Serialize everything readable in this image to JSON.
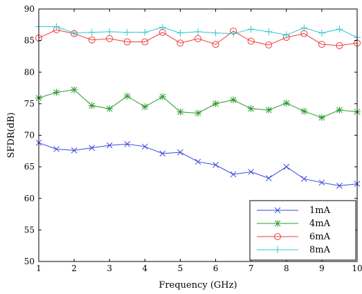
{
  "chart_data": {
    "type": "line",
    "xlabel": "Frequency (GHz)",
    "ylabel": "SFDR(dB)",
    "xlim": [
      1,
      10
    ],
    "ylim": [
      50,
      90
    ],
    "xticks": [
      "1",
      "2",
      "3",
      "4",
      "5",
      "6",
      "7",
      "8",
      "9",
      "10"
    ],
    "yticks": [
      "50",
      "55",
      "60",
      "65",
      "70",
      "75",
      "80",
      "85",
      "90"
    ],
    "grid": false,
    "legend_position": "bottom-right",
    "x": [
      1,
      1.5,
      2,
      2.5,
      3,
      3.5,
      4,
      4.5,
      5,
      5.5,
      6,
      6.5,
      7,
      7.5,
      8,
      8.5,
      9,
      9.5,
      10
    ],
    "series": [
      {
        "name": "1mA",
        "color": "#3b46e0",
        "marker": "x",
        "values": [
          68.8,
          67.8,
          67.6,
          68.0,
          68.4,
          68.6,
          68.2,
          67.1,
          67.3,
          65.8,
          65.3,
          63.8,
          64.2,
          63.2,
          65.0,
          63.1,
          62.5,
          62.0,
          62.3
        ]
      },
      {
        "name": "4mA",
        "color": "#2a9a2a",
        "marker": "star",
        "values": [
          75.9,
          76.8,
          77.2,
          74.7,
          74.2,
          76.2,
          74.5,
          76.1,
          73.7,
          73.5,
          75.0,
          75.6,
          74.2,
          74.0,
          75.1,
          73.8,
          72.8,
          74.0,
          73.7
        ]
      },
      {
        "name": "6mA",
        "color": "#f03a3a",
        "marker": "o",
        "values": [
          85.4,
          86.7,
          86.1,
          85.1,
          85.3,
          84.8,
          84.8,
          86.3,
          84.6,
          85.3,
          84.4,
          86.5,
          84.9,
          84.3,
          85.5,
          86.1,
          84.4,
          84.2,
          84.6
        ]
      },
      {
        "name": "8mA",
        "color": "#2ec8d0",
        "marker": "+",
        "values": [
          87.2,
          87.2,
          86.2,
          86.3,
          86.4,
          86.3,
          86.3,
          87.1,
          86.2,
          86.4,
          86.2,
          86.1,
          86.8,
          86.4,
          85.9,
          87.0,
          86.2,
          86.8,
          85.5
        ]
      }
    ]
  }
}
